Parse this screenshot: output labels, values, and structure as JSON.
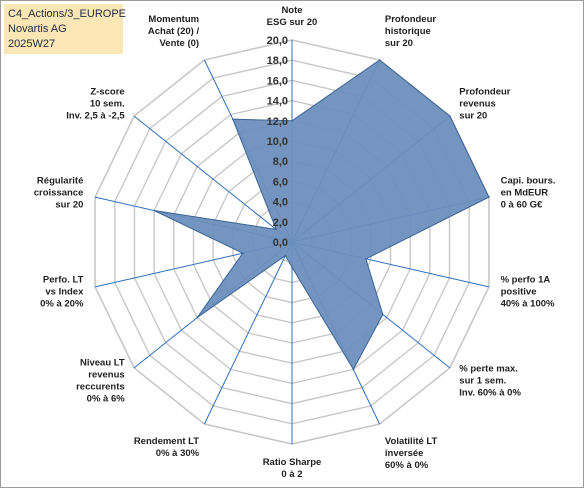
{
  "info_box": {
    "line1": "C4_Actions/3_EUROPE",
    "line2": "Novartis AG",
    "line3": "2025W27"
  },
  "colors": {
    "fill": "#6b8fbd",
    "stroke": "#3b6596",
    "grid": "#c8c8c8",
    "spoke": "#2e6fbe",
    "info_box_bg": "#fbe6b5"
  },
  "chart_data": {
    "type": "radar",
    "rmin": 0,
    "rmax": 20,
    "tick_step": 2,
    "tick_labels": [
      "0,0",
      "2,0",
      "4,0",
      "6,0",
      "8,0",
      "10,0",
      "12,0",
      "14,0",
      "16,0",
      "18,0",
      "20,0"
    ],
    "grid": true,
    "axes": [
      [
        "Note",
        "ESG sur 20"
      ],
      [
        "Profondeur",
        "historique",
        "sur 20"
      ],
      [
        "Profondeur",
        "revenus",
        "sur 20"
      ],
      [
        "Capi. bours.",
        "en MdEUR",
        "0 à 60 G€"
      ],
      [
        "% perfo 1A",
        "positive",
        "40% à 100%"
      ],
      [
        "% perte max.",
        "sur 1 sem.",
        "Inv. 60% à 0%"
      ],
      [
        "Volatilité LT",
        "inversée",
        "60% à 0%"
      ],
      [
        "Ratio Sharpe",
        "0 à 2"
      ],
      [
        "Rendement LT",
        "0% à 30%"
      ],
      [
        "Niveau LT",
        "revenus",
        "reccurents",
        "0% à 6%"
      ],
      [
        "Perfo. LT",
        "vs Index",
        "0% à 20%"
      ],
      [
        "Régularité",
        "croissance",
        "sur 20"
      ],
      [
        "Z-score",
        "10 sem.",
        "Inv. 2,5 à -2,5"
      ],
      [
        "Momentum",
        "Achat (20) /",
        "Vente (0)"
      ]
    ],
    "values": [
      12,
      20,
      20,
      20,
      7.5,
      11.5,
      14,
      2.5,
      1.5,
      12,
      5,
      14,
      2,
      13.5
    ]
  }
}
